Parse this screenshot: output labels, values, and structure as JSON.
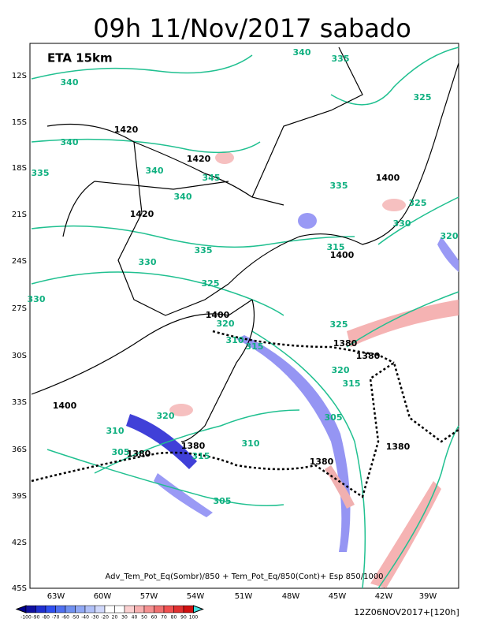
{
  "title": "09h 11/Nov/2017 sabado",
  "model": "ETA 15km",
  "lat_labels": [
    "12S",
    "15S",
    "18S",
    "21S",
    "24S",
    "27S",
    "30S",
    "33S",
    "36S",
    "39S",
    "42S",
    "45S"
  ],
  "lon_labels": [
    "63W",
    "60W",
    "57W",
    "54W",
    "51W",
    "48W",
    "45W",
    "42W",
    "39W"
  ],
  "contour_labels": [
    "340",
    "335",
    "340",
    "325",
    "1420",
    "340",
    "335",
    "1420",
    "340",
    "345",
    "340",
    "335",
    "1400",
    "1420",
    "325",
    "330",
    "320",
    "335",
    "315",
    "1400",
    "330",
    "325",
    "330",
    "1400",
    "320",
    "325",
    "310",
    "315",
    "1380",
    "1380",
    "320",
    "315",
    "1400",
    "320",
    "310",
    "305",
    "1380",
    "1380",
    "305",
    "1380",
    "315",
    "310",
    "1380",
    "305"
  ],
  "caption": "Adv_Tem_Pot_Eq(Sombr)/850 + Tem_Pot_Eq/850(Cont)+ Esp 850/1000",
  "colorbar_labels": [
    -100,
    -90,
    -80,
    -70,
    -60,
    -50,
    -40,
    -30,
    -20,
    20,
    30,
    40,
    50,
    60,
    70,
    80,
    90,
    100
  ],
  "run": "12Z06NOV2017+[120h]"
}
